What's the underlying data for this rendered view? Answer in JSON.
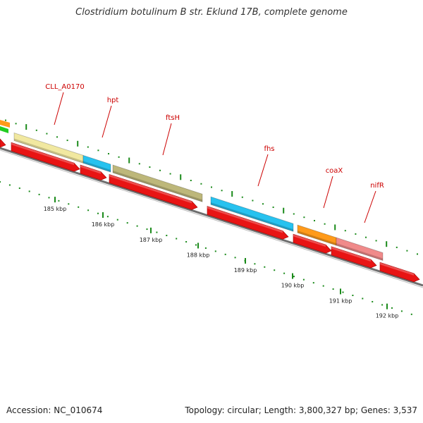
{
  "title_prefix": "Clostridium botulinum B str. Eklund 17B, complete genome",
  "footer": {
    "accession": "Accession: NC_010674",
    "summary": "Topology: circular; Length: 3,800,327 bp; Genes: 3,537"
  },
  "gene_labels": [
    "CLL_A0170",
    "hpt",
    "ftsH",
    "fhs",
    "coaX",
    "nifR"
  ],
  "scale_labels": [
    "185 kbp",
    "186 kbp",
    "187 kbp",
    "188 kbp",
    "189 kbp",
    "190 kbp",
    "191 kbp",
    "192 kbp"
  ],
  "colors": {
    "forward_gene_pale": "#f1e8a0",
    "forward_gene_cyan": "#27c2ef",
    "forward_gene_olive": "#bdb77a",
    "forward_gene_orange": "#ff9a1a",
    "forward_gene_pink": "#f08a8a",
    "reverse_gene": "#e81414",
    "backbone": "#808080",
    "tick": "#1a8a1a",
    "label": "#cc0000"
  }
}
